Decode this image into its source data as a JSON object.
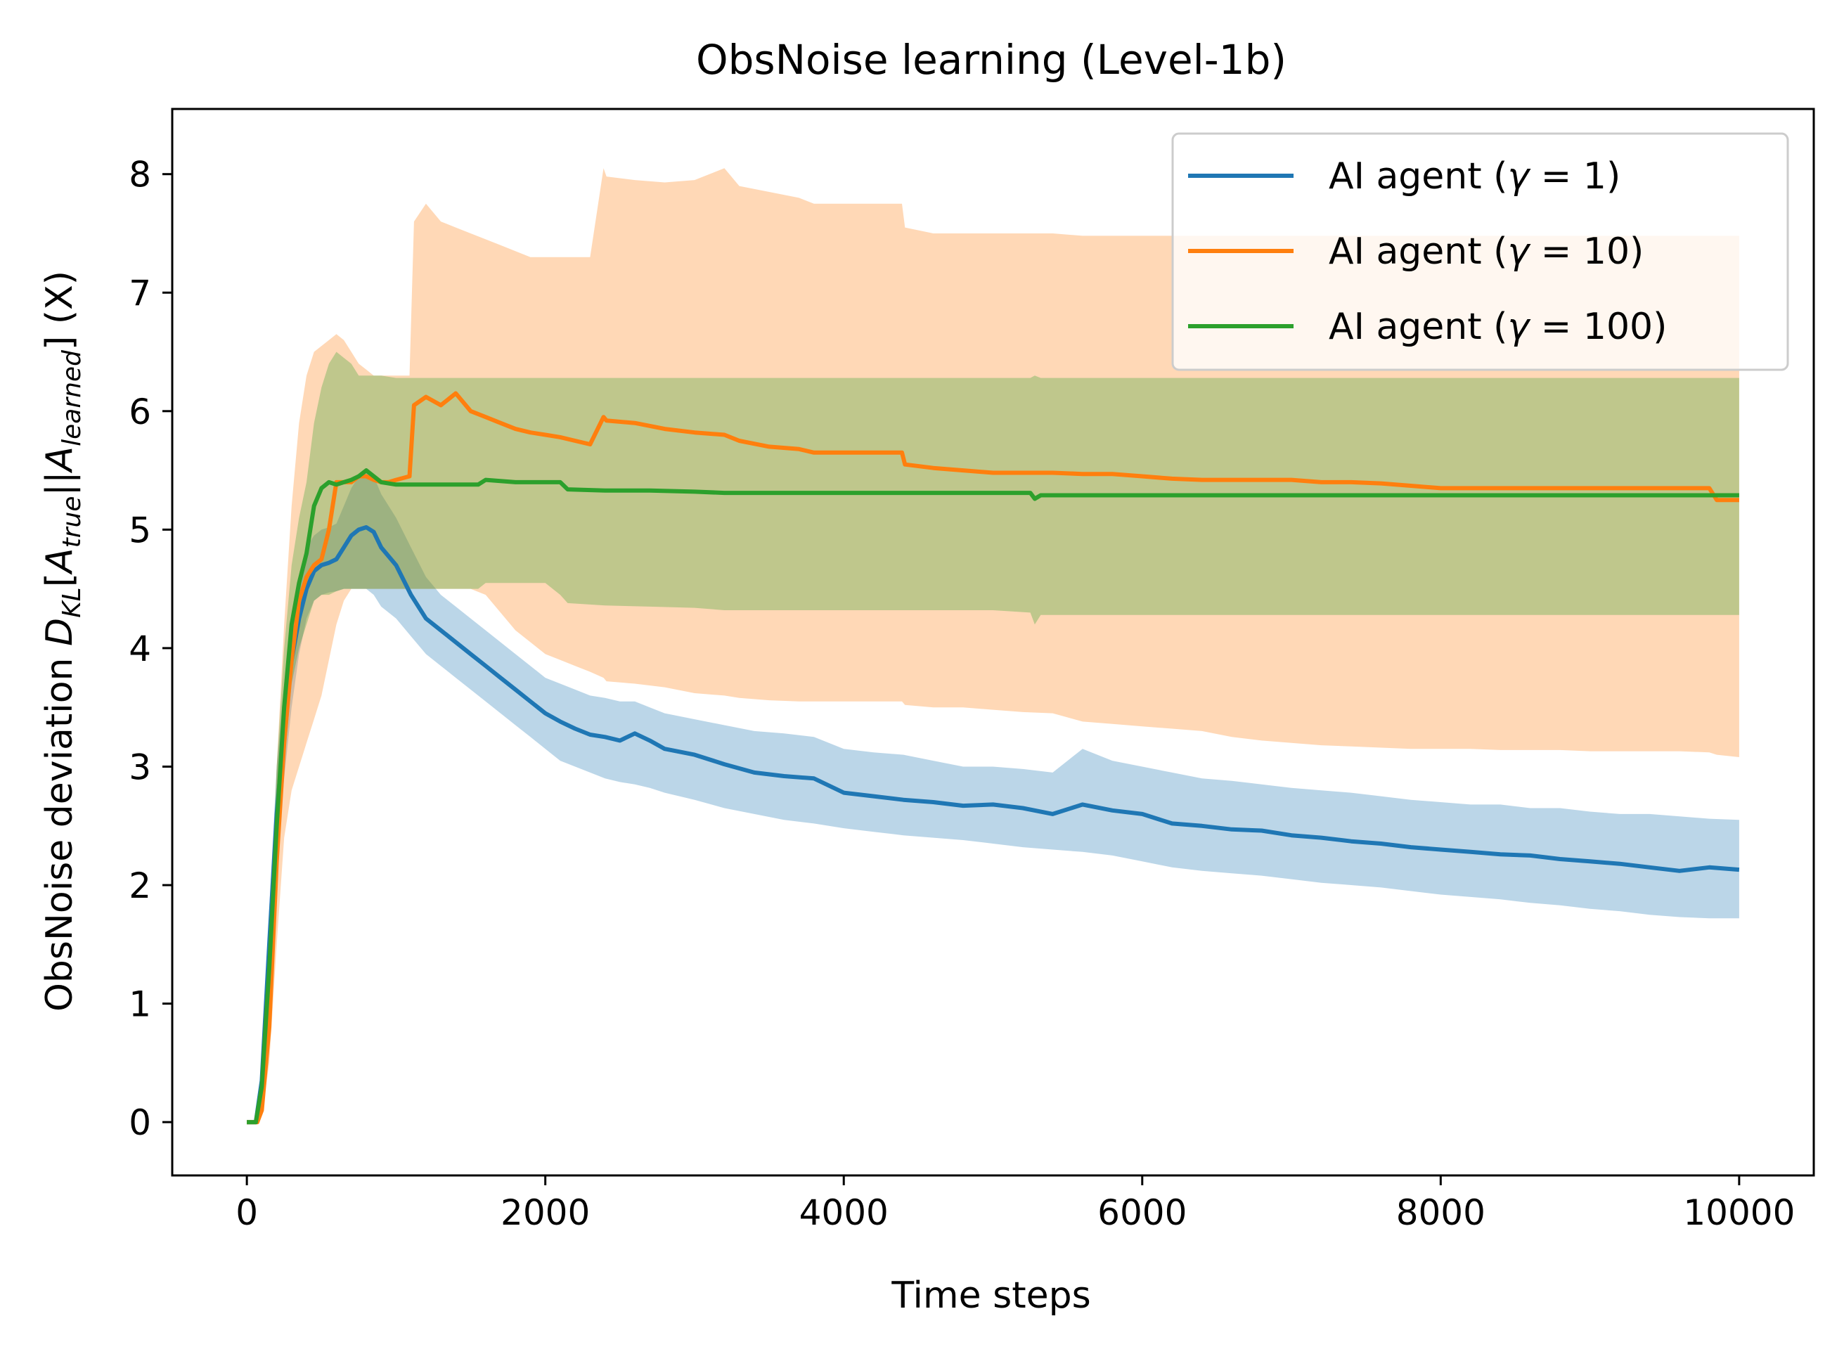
{
  "chart_data": {
    "type": "line",
    "title": "ObsNoise learning (Level-1b)",
    "xlabel": "Time steps",
    "ylabel": "ObsNoise deviation  D_KL[A_true||A_learned] (X)",
    "ylabel_parts": {
      "prefix": "ObsNoise deviation  ",
      "D": "D",
      "D_sub": "KL",
      "bracket_open": "[",
      "A1": "A",
      "A1_sub": "true",
      "sep": "||",
      "A2": "A",
      "A2_sub": "learned",
      "bracket_close": "]",
      "suffix": " (X)"
    },
    "xlim": [
      -500,
      10500
    ],
    "ylim": [
      -0.45,
      8.55
    ],
    "xticks": [
      0,
      2000,
      4000,
      6000,
      8000,
      10000
    ],
    "yticks": [
      0,
      1,
      2,
      3,
      4,
      5,
      6,
      7,
      8
    ],
    "grid": false,
    "legend_position": "top-right",
    "series": [
      {
        "name": "AI agent (γ = 1)",
        "legend": {
          "prefix": "AI agent (",
          "symbol": "γ",
          "eq": " = ",
          "value": "1",
          "suffix": ")"
        },
        "color": "#1f77b4",
        "x": [
          0,
          60,
          100,
          150,
          200,
          250,
          300,
          350,
          400,
          450,
          500,
          550,
          600,
          650,
          700,
          750,
          800,
          850,
          900,
          1000,
          1100,
          1200,
          1300,
          1400,
          1500,
          1600,
          1700,
          1800,
          1900,
          2000,
          2100,
          2200,
          2300,
          2400,
          2500,
          2600,
          2700,
          2800,
          3000,
          3200,
          3400,
          3600,
          3800,
          4000,
          4200,
          4400,
          4600,
          4800,
          5000,
          5200,
          5400,
          5600,
          5800,
          6000,
          6200,
          6400,
          6600,
          6800,
          7000,
          7200,
          7400,
          7600,
          7800,
          8000,
          8200,
          8400,
          8600,
          8800,
          9000,
          9200,
          9400,
          9600,
          9800,
          10000
        ],
        "y": [
          0,
          0,
          0.35,
          1.5,
          2.6,
          3.3,
          3.9,
          4.25,
          4.5,
          4.65,
          4.7,
          4.72,
          4.75,
          4.85,
          4.95,
          5.0,
          5.02,
          4.98,
          4.85,
          4.7,
          4.45,
          4.25,
          4.15,
          4.05,
          3.95,
          3.85,
          3.75,
          3.65,
          3.55,
          3.45,
          3.38,
          3.32,
          3.27,
          3.25,
          3.22,
          3.28,
          3.22,
          3.15,
          3.1,
          3.02,
          2.95,
          2.92,
          2.9,
          2.78,
          2.75,
          2.72,
          2.7,
          2.67,
          2.68,
          2.65,
          2.6,
          2.68,
          2.63,
          2.6,
          2.52,
          2.5,
          2.47,
          2.46,
          2.42,
          2.4,
          2.37,
          2.35,
          2.32,
          2.3,
          2.28,
          2.26,
          2.25,
          2.22,
          2.2,
          2.18,
          2.15,
          2.12,
          2.15,
          2.13
        ],
        "lower": [
          0,
          0,
          0.3,
          1.2,
          2.2,
          2.9,
          3.5,
          3.95,
          4.25,
          4.4,
          4.45,
          4.47,
          4.48,
          4.5,
          4.5,
          4.5,
          4.5,
          4.45,
          4.35,
          4.25,
          4.1,
          3.95,
          3.85,
          3.75,
          3.65,
          3.55,
          3.45,
          3.35,
          3.25,
          3.15,
          3.05,
          3.0,
          2.95,
          2.9,
          2.87,
          2.85,
          2.82,
          2.78,
          2.72,
          2.65,
          2.6,
          2.55,
          2.52,
          2.48,
          2.45,
          2.42,
          2.4,
          2.38,
          2.35,
          2.32,
          2.3,
          2.28,
          2.25,
          2.2,
          2.15,
          2.12,
          2.1,
          2.08,
          2.05,
          2.02,
          2.0,
          1.98,
          1.95,
          1.92,
          1.9,
          1.88,
          1.85,
          1.83,
          1.8,
          1.78,
          1.75,
          1.73,
          1.72,
          1.72
        ],
        "upper": [
          0,
          0,
          0.4,
          1.8,
          3.0,
          3.7,
          4.3,
          4.6,
          4.85,
          4.95,
          5.0,
          5.02,
          5.05,
          5.2,
          5.35,
          5.45,
          5.5,
          5.45,
          5.3,
          5.1,
          4.85,
          4.6,
          4.45,
          4.35,
          4.25,
          4.15,
          4.05,
          3.95,
          3.85,
          3.75,
          3.7,
          3.65,
          3.6,
          3.58,
          3.55,
          3.55,
          3.5,
          3.45,
          3.4,
          3.35,
          3.3,
          3.28,
          3.25,
          3.15,
          3.12,
          3.1,
          3.05,
          3.0,
          3.0,
          2.98,
          2.95,
          3.15,
          3.05,
          3.0,
          2.95,
          2.9,
          2.88,
          2.85,
          2.82,
          2.8,
          2.78,
          2.75,
          2.72,
          2.7,
          2.68,
          2.68,
          2.65,
          2.65,
          2.62,
          2.6,
          2.6,
          2.58,
          2.56,
          2.55
        ]
      },
      {
        "name": "AI agent (γ = 10)",
        "legend": {
          "prefix": "AI agent (",
          "symbol": "γ",
          "eq": " = ",
          "value": "10",
          "suffix": ")"
        },
        "color": "#ff7f0e",
        "x": [
          0,
          70,
          100,
          150,
          200,
          250,
          300,
          350,
          400,
          450,
          500,
          550,
          600,
          650,
          700,
          750,
          800,
          850,
          900,
          950,
          1000,
          1090,
          1120,
          1200,
          1300,
          1400,
          1500,
          1600,
          1700,
          1800,
          1900,
          2000,
          2100,
          2200,
          2300,
          2390,
          2410,
          2600,
          2800,
          3000,
          3200,
          3300,
          3500,
          3700,
          3800,
          4000,
          4200,
          4390,
          4410,
          4600,
          4800,
          5000,
          5200,
          5400,
          5600,
          5800,
          6000,
          6200,
          6400,
          6600,
          6800,
          7000,
          7200,
          7400,
          7600,
          7800,
          8000,
          8200,
          8400,
          8600,
          8800,
          9000,
          9200,
          9400,
          9600,
          9800,
          9850,
          10000
        ],
        "y": [
          0,
          0,
          0.1,
          0.8,
          2.2,
          3.2,
          3.9,
          4.4,
          4.6,
          4.7,
          4.75,
          5.0,
          5.4,
          5.4,
          5.4,
          5.45,
          5.45,
          5.42,
          5.4,
          5.4,
          5.42,
          5.45,
          6.05,
          6.12,
          6.05,
          6.15,
          6.0,
          5.95,
          5.9,
          5.85,
          5.82,
          5.8,
          5.78,
          5.75,
          5.72,
          5.95,
          5.92,
          5.9,
          5.85,
          5.82,
          5.8,
          5.75,
          5.7,
          5.68,
          5.65,
          5.65,
          5.65,
          5.65,
          5.55,
          5.52,
          5.5,
          5.48,
          5.48,
          5.48,
          5.47,
          5.47,
          5.45,
          5.43,
          5.42,
          5.42,
          5.42,
          5.42,
          5.4,
          5.4,
          5.39,
          5.37,
          5.35,
          5.35,
          5.35,
          5.35,
          5.35,
          5.35,
          5.35,
          5.35,
          5.35,
          5.35,
          5.25,
          5.25
        ],
        "lower": [
          0,
          0,
          0.05,
          0.5,
          1.5,
          2.4,
          2.8,
          3.0,
          3.2,
          3.4,
          3.6,
          3.9,
          4.2,
          4.4,
          4.5,
          4.5,
          4.5,
          4.5,
          4.5,
          4.5,
          4.5,
          4.5,
          4.5,
          4.5,
          4.5,
          4.5,
          4.5,
          4.45,
          4.3,
          4.15,
          4.05,
          3.95,
          3.9,
          3.85,
          3.8,
          3.75,
          3.72,
          3.7,
          3.67,
          3.62,
          3.6,
          3.58,
          3.56,
          3.55,
          3.55,
          3.55,
          3.55,
          3.55,
          3.52,
          3.5,
          3.5,
          3.48,
          3.46,
          3.45,
          3.38,
          3.36,
          3.34,
          3.32,
          3.3,
          3.25,
          3.22,
          3.2,
          3.18,
          3.17,
          3.16,
          3.15,
          3.15,
          3.15,
          3.14,
          3.14,
          3.14,
          3.13,
          3.13,
          3.13,
          3.13,
          3.12,
          3.1,
          3.08
        ],
        "upper": [
          0,
          0,
          0.15,
          1.2,
          3.0,
          4.2,
          5.2,
          5.9,
          6.3,
          6.5,
          6.55,
          6.6,
          6.65,
          6.6,
          6.5,
          6.4,
          6.35,
          6.3,
          6.3,
          6.3,
          6.3,
          6.3,
          7.6,
          7.75,
          7.6,
          7.55,
          7.5,
          7.45,
          7.4,
          7.35,
          7.3,
          7.3,
          7.3,
          7.3,
          7.3,
          8.05,
          7.98,
          7.95,
          7.93,
          7.95,
          8.05,
          7.9,
          7.85,
          7.8,
          7.75,
          7.75,
          7.75,
          7.75,
          7.55,
          7.5,
          7.5,
          7.5,
          7.5,
          7.5,
          7.48,
          7.48,
          7.48,
          7.48,
          7.48,
          7.48,
          7.48,
          7.48,
          7.48,
          7.48,
          7.48,
          7.48,
          7.48,
          7.48,
          7.48,
          7.48,
          7.48,
          7.48,
          7.48,
          7.48,
          7.48,
          7.48,
          7.48,
          7.48
        ]
      },
      {
        "name": "AI agent (γ = 100)",
        "legend": {
          "prefix": "AI agent (",
          "symbol": "γ",
          "eq": " = ",
          "value": "100",
          "suffix": ")"
        },
        "color": "#2ca02c",
        "x": [
          0,
          60,
          100,
          150,
          200,
          250,
          300,
          350,
          400,
          450,
          500,
          550,
          600,
          650,
          700,
          750,
          800,
          850,
          900,
          1000,
          1200,
          1400,
          1550,
          1600,
          1800,
          2000,
          2100,
          2150,
          2400,
          2700,
          3000,
          3200,
          3500,
          4000,
          4500,
          5000,
          5250,
          5280,
          5320,
          5600,
          6000,
          7000,
          8000,
          9000,
          10000
        ],
        "y": [
          0,
          0,
          0.3,
          1.3,
          2.5,
          3.5,
          4.2,
          4.55,
          4.8,
          5.2,
          5.35,
          5.4,
          5.38,
          5.4,
          5.42,
          5.45,
          5.5,
          5.45,
          5.4,
          5.38,
          5.38,
          5.38,
          5.38,
          5.42,
          5.4,
          5.4,
          5.4,
          5.34,
          5.33,
          5.33,
          5.32,
          5.31,
          5.31,
          5.31,
          5.31,
          5.31,
          5.31,
          5.26,
          5.29,
          5.29,
          5.29,
          5.29,
          5.29,
          5.29,
          5.29
        ],
        "lower": [
          0,
          0,
          0.2,
          1.0,
          2.0,
          3.0,
          3.7,
          4.0,
          4.2,
          4.4,
          4.45,
          4.45,
          4.48,
          4.5,
          4.5,
          4.5,
          4.5,
          4.5,
          4.5,
          4.5,
          4.5,
          4.5,
          4.5,
          4.55,
          4.55,
          4.55,
          4.45,
          4.38,
          4.36,
          4.35,
          4.34,
          4.32,
          4.32,
          4.32,
          4.32,
          4.32,
          4.3,
          4.2,
          4.28,
          4.28,
          4.28,
          4.28,
          4.28,
          4.28,
          4.28
        ],
        "upper": [
          0,
          0,
          0.35,
          1.6,
          3.0,
          4.0,
          4.7,
          5.1,
          5.4,
          5.9,
          6.2,
          6.4,
          6.5,
          6.45,
          6.4,
          6.3,
          6.3,
          6.3,
          6.3,
          6.28,
          6.28,
          6.28,
          6.28,
          6.28,
          6.28,
          6.28,
          6.28,
          6.28,
          6.28,
          6.28,
          6.28,
          6.28,
          6.28,
          6.28,
          6.28,
          6.28,
          6.28,
          6.3,
          6.28,
          6.28,
          6.28,
          6.28,
          6.28,
          6.28,
          6.28
        ]
      }
    ]
  }
}
